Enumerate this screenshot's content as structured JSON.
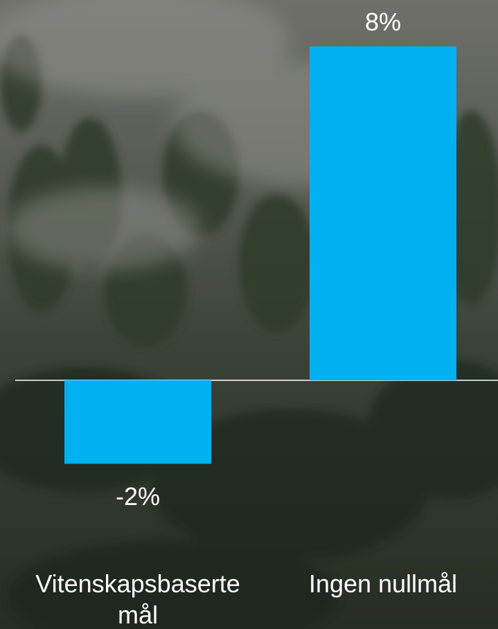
{
  "chart_data": {
    "type": "bar",
    "categories": [
      "Vitenskapsbaserte mål",
      "Ingen nullmål"
    ],
    "values": [
      -2,
      8
    ],
    "value_labels": [
      "-2%",
      "8%"
    ],
    "color": "#00b0f0"
  }
}
